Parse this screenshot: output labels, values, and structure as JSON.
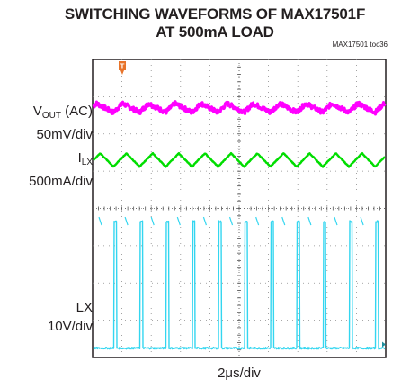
{
  "chart_data": {
    "type": "line",
    "title": "SWITCHING WAVEFORMS OF MAX17501F",
    "subtitle": "AT 500mA LOAD",
    "figure_ref": "MAX17501 toc36",
    "xlabel": "2μs/div",
    "x_divisions": 10,
    "y_divisions": 8,
    "grid": true,
    "trigger_marker": "T",
    "series": [
      {
        "name": "VOUT (AC)",
        "name_main": "V",
        "name_sub": "OUT",
        "name_suffix": " (AC)",
        "scale": "50mV/div",
        "color": "#ff00ff",
        "shape": "ripple",
        "level_div": 6.7,
        "amplitude_div": 0.12,
        "cycles": 11
      },
      {
        "name": "ILX",
        "name_main": "I",
        "name_sub": "LX",
        "name_suffix": "",
        "scale": "500mA/div",
        "color": "#00dd00",
        "shape": "triangle",
        "level_div": 5.3,
        "amplitude_div": 0.18,
        "cycles": 11
      },
      {
        "name": "LX",
        "name_main": "LX",
        "name_sub": "",
        "name_suffix": "",
        "scale": "10V/div",
        "color": "#33d6f0",
        "shape": "pulse",
        "low_div": 0.25,
        "high_div": 3.65,
        "cycles": 11,
        "duty": 0.1
      }
    ]
  }
}
